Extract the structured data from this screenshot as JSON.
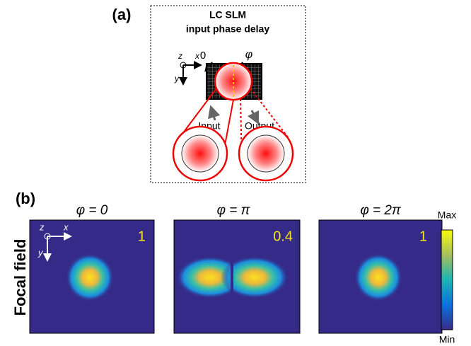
{
  "panel_a": {
    "label": "(a)",
    "title_line1": "LC SLM",
    "title_line2": "input phase delay",
    "phase_left": "0",
    "phase_right": "φ",
    "axis_z": "z",
    "axis_x": "x",
    "axis_y": "y",
    "input": "Input",
    "output": "Output"
  },
  "panel_b": {
    "label": "(b)",
    "row_label": "Focal field",
    "axis_z": "z",
    "axis_x": "x",
    "axis_y": "y",
    "panels": [
      {
        "title": "φ = 0",
        "value": 1
      },
      {
        "title": "φ = π",
        "value": 0.4
      },
      {
        "title": "φ = 2π",
        "value": 1
      }
    ],
    "colorbar": {
      "max": "Max",
      "min": "Min"
    }
  }
}
